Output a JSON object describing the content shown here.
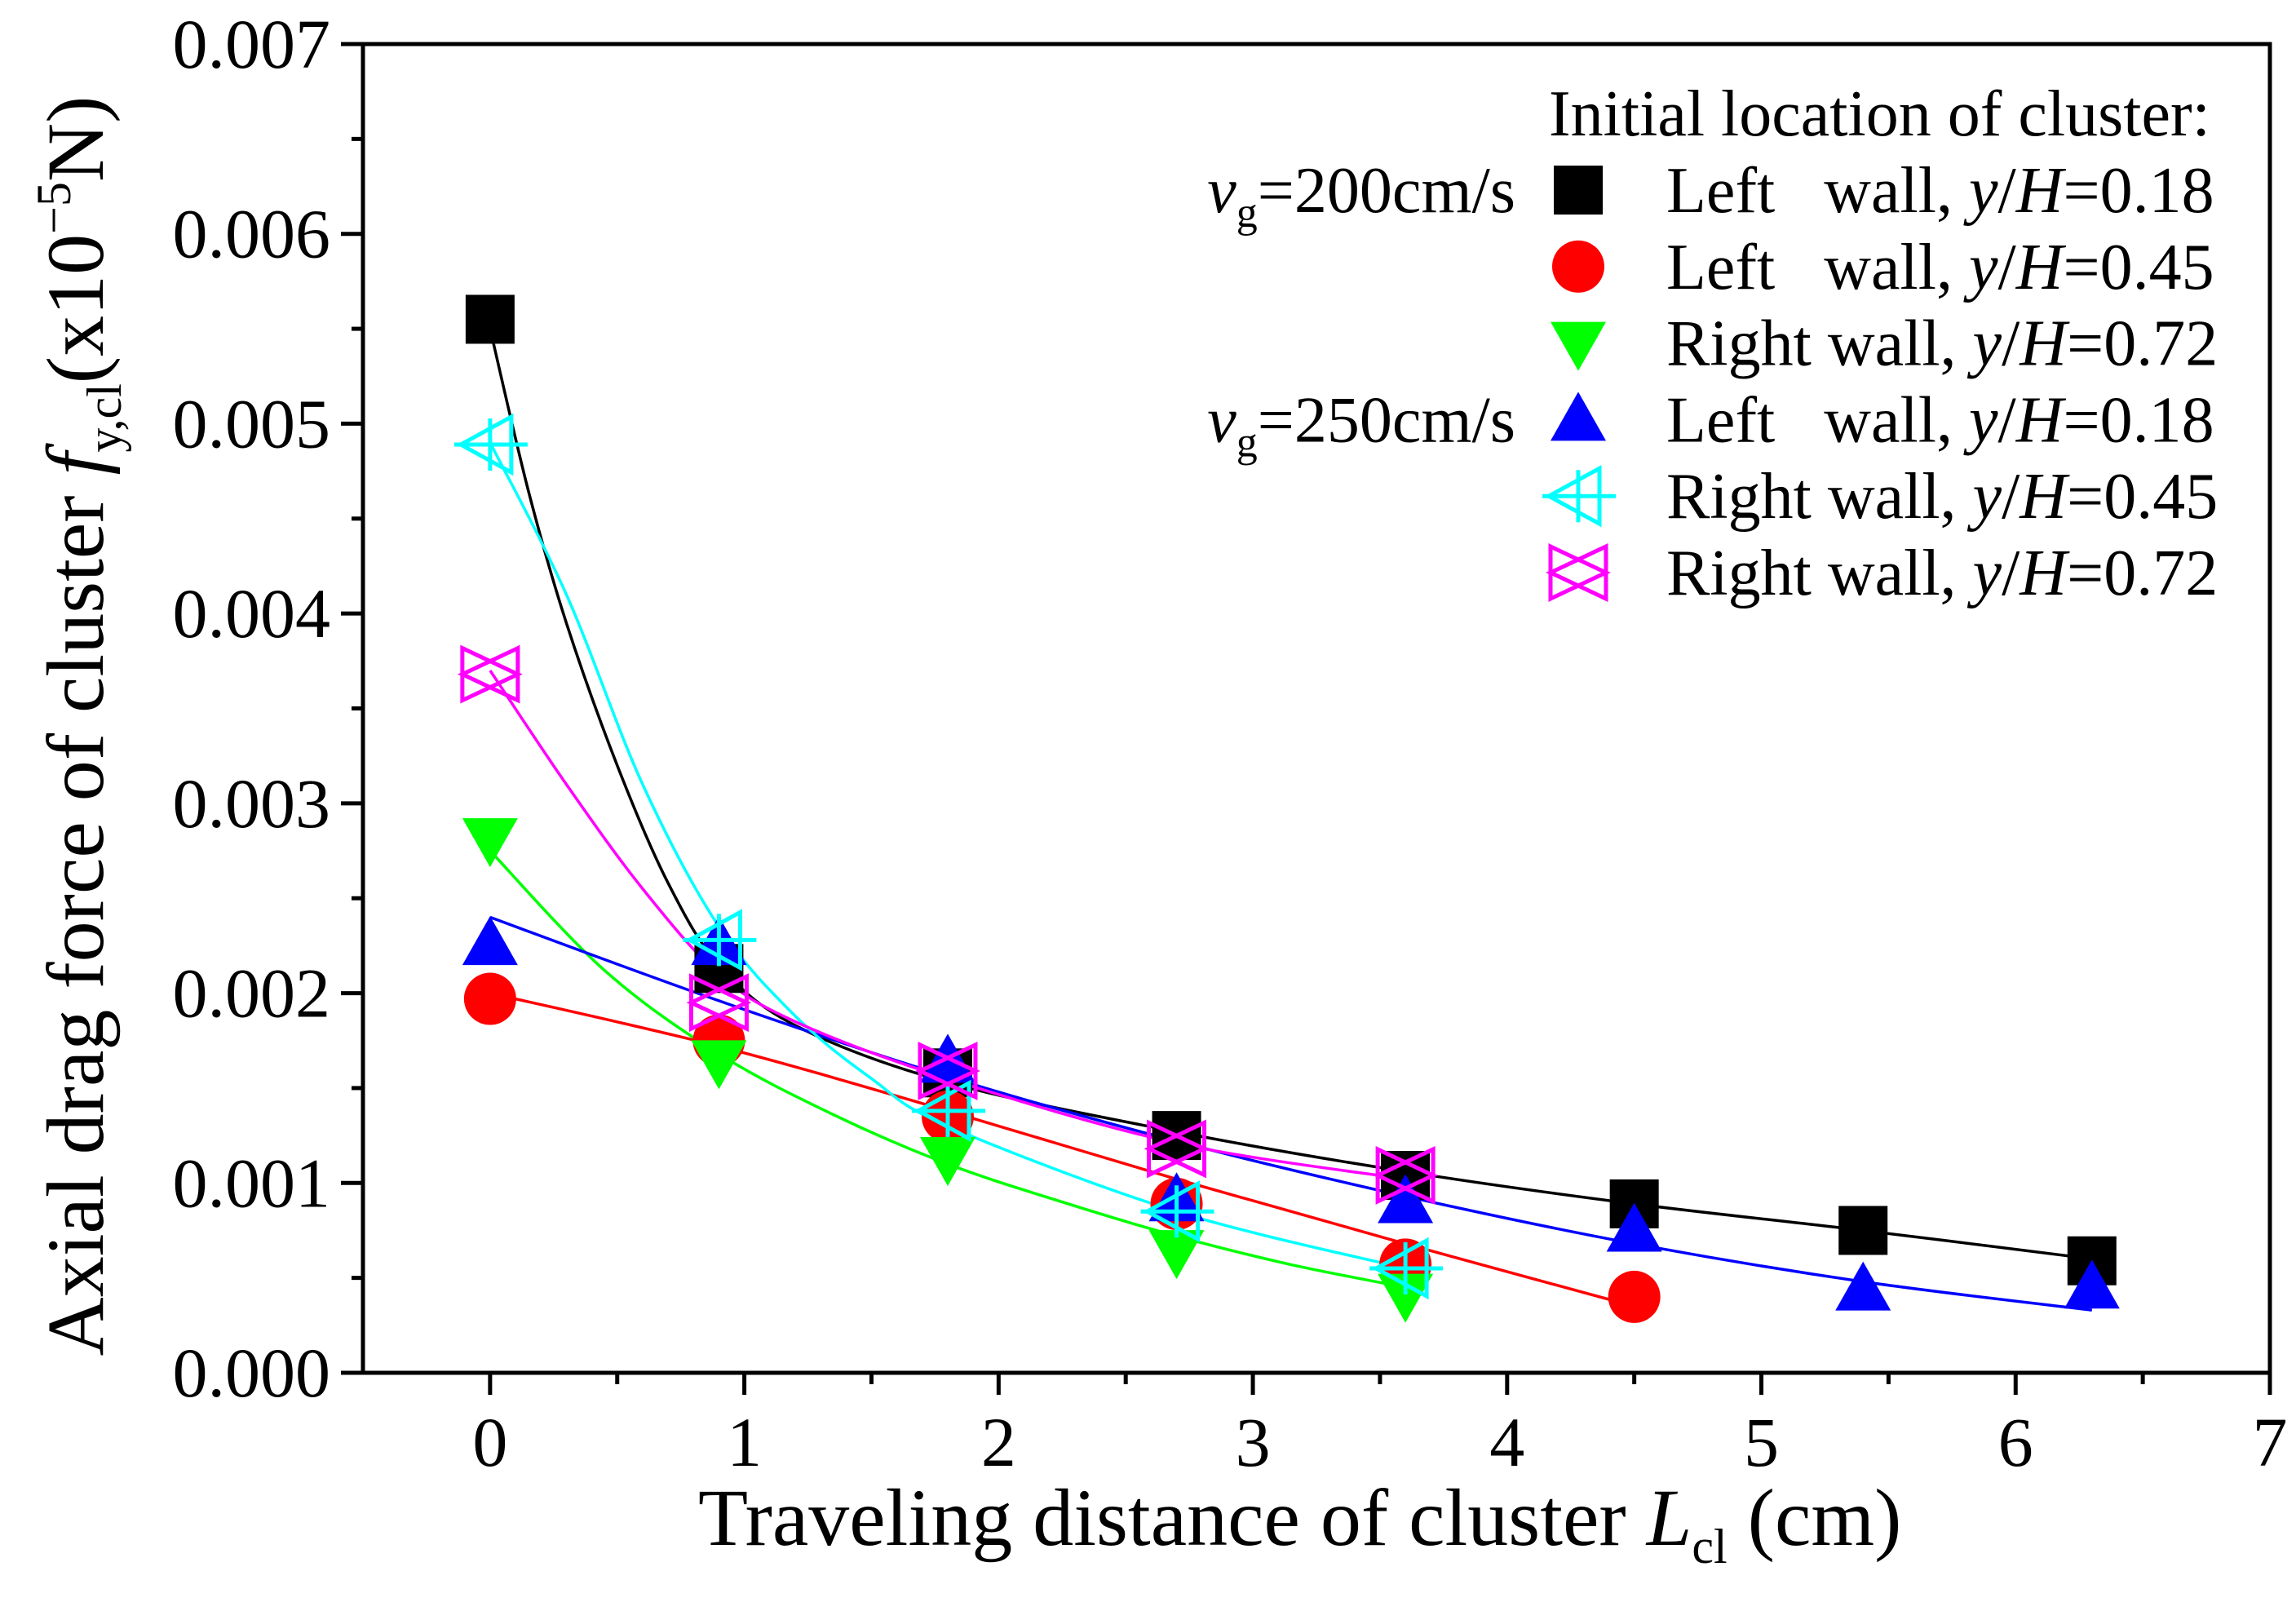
{
  "chart_data": {
    "type": "scatter",
    "title": "",
    "xlabel": {
      "text": "Traveling distance of cluster ",
      "var": "L",
      "sub": "cl",
      "unit": " (cm)"
    },
    "ylabel": {
      "text": "Axial drag force of cluster ",
      "var": "f",
      "sub": "y,cl",
      "unit_pre": "(x10",
      "unit_sup": "−5",
      "unit_post": "N)"
    },
    "xlim": [
      -0.5,
      7
    ],
    "ylim": [
      0,
      0.007
    ],
    "xticks": [
      0,
      1,
      2,
      3,
      4,
      5,
      6,
      7
    ],
    "xtick_labels": [
      "0",
      "1",
      "2",
      "3",
      "4",
      "5",
      "6",
      "7"
    ],
    "yticks": [
      0,
      0.001,
      0.002,
      0.003,
      0.004,
      0.005,
      0.006,
      0.007
    ],
    "ytick_labels": [
      "0.000",
      "0.001",
      "0.002",
      "0.003",
      "0.004",
      "0.005",
      "0.006",
      "0.007"
    ],
    "grid": false,
    "legend": {
      "title": "Initial location of cluster:",
      "position": "top-right"
    },
    "groups": [
      {
        "var": "v",
        "sub": "g",
        "value": "=200cm/s"
      },
      {
        "var": "v",
        "sub": "g",
        "value": "=250cm/s"
      }
    ],
    "series": [
      {
        "name": "Left   wall, y/H=0.18",
        "group": 0,
        "color": "#000000",
        "marker": "square",
        "x": [
          0,
          0.9,
          1.8,
          2.7,
          3.6,
          4.5,
          5.4,
          6.3
        ],
        "y": [
          0.00555,
          0.00213,
          0.00158,
          0.00125,
          0.00104,
          0.00089,
          0.00075,
          0.00059
        ],
        "fit": {
          "x": [
            0,
            0.15,
            0.3,
            0.5,
            0.7,
            0.9,
            1.2,
            1.8,
            2.7,
            3.6,
            4.5,
            5.4,
            6.3
          ],
          "y": [
            0.0055,
            0.00465,
            0.00395,
            0.0032,
            0.00258,
            0.00215,
            0.00183,
            0.00153,
            0.00127,
            0.00106,
            0.00089,
            0.00075,
            0.0006
          ]
        }
      },
      {
        "name": "Left   wall, y/H=0.45",
        "group": 0,
        "color": "#FF0000",
        "marker": "circle",
        "x": [
          0,
          0.9,
          1.8,
          2.7,
          3.6,
          4.5
        ],
        "y": [
          0.00197,
          0.00175,
          0.00135,
          0.00089,
          0.00057,
          0.0004
        ],
        "fit": {
          "x": [
            0,
            0.9,
            1.8,
            2.7,
            3.6,
            4.5
          ],
          "y": [
            0.002,
            0.00172,
            0.00138,
            0.00102,
            0.00068,
            0.00035
          ]
        }
      },
      {
        "name": "Right wall, y/H=0.72",
        "group": 0,
        "color": "#00FF00",
        "marker": "triangle-down",
        "x": [
          0,
          0.9,
          1.8,
          2.7,
          3.6
        ],
        "y": [
          0.00281,
          0.00164,
          0.00113,
          0.00064,
          0.00041
        ],
        "fit": {
          "x": [
            0,
            0.45,
            0.9,
            1.35,
            1.8,
            2.25,
            2.7,
            3.15,
            3.6
          ],
          "y": [
            0.00275,
            0.00212,
            0.00168,
            0.00136,
            0.0011,
            0.0009,
            0.00072,
            0.00057,
            0.00045
          ]
        }
      },
      {
        "name": "Left   wall, y/H=0.18",
        "group": 1,
        "color": "#0000FF",
        "marker": "triangle-up",
        "x": [
          0,
          0.9,
          1.8,
          2.7,
          3.6,
          4.5,
          5.4,
          6.3
        ],
        "y": [
          0.00226,
          0.00226,
          0.00164,
          0.00091,
          0.0009,
          0.00075,
          0.00044,
          0.00045
        ],
        "fit": {
          "x": [
            0,
            0.9,
            1.8,
            2.7,
            3.6,
            4.5,
            5.4,
            6.3
          ],
          "y": [
            0.0024,
            0.00196,
            0.00156,
            0.00122,
            0.00093,
            0.00068,
            0.00048,
            0.00033
          ]
        }
      },
      {
        "name": "Right wall, y/H=0.45",
        "group": 1,
        "color": "#00FFFF",
        "marker": "triangle-left-plus",
        "x": [
          0,
          0.9,
          1.8,
          2.7,
          3.6
        ],
        "y": [
          0.00489,
          0.00228,
          0.00138,
          0.00085,
          0.00055
        ],
        "fit": {
          "x": [
            0,
            0.3,
            0.6,
            0.9,
            1.2,
            1.5,
            1.8,
            2.7,
            3.6
          ],
          "y": [
            0.0049,
            0.0041,
            0.0031,
            0.00235,
            0.00188,
            0.00155,
            0.0013,
            0.00085,
            0.00055
          ]
        }
      },
      {
        "name": "Right wall, y/H=0.72",
        "group": 1,
        "color": "#FF00FF",
        "marker": "bowtie",
        "x": [
          0,
          0.9,
          1.8,
          2.7,
          3.6
        ],
        "y": [
          0.00368,
          0.00195,
          0.00159,
          0.00118,
          0.00104
        ],
        "fit": {
          "x": [
            0,
            0.3,
            0.6,
            0.9,
            1.2,
            1.8,
            2.7,
            3.6
          ],
          "y": [
            0.0037,
            0.0031,
            0.00255,
            0.0021,
            0.00185,
            0.00155,
            0.00121,
            0.00102
          ]
        }
      }
    ]
  }
}
